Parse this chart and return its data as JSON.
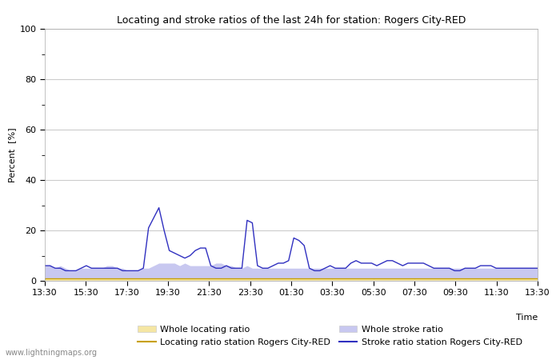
{
  "title": "Locating and stroke ratios of the last 24h for station: Rogers City-RED",
  "xlabel": "Time",
  "ylabel": "Percent  [%]",
  "ylim": [
    0,
    100
  ],
  "yticks": [
    0,
    20,
    40,
    60,
    80,
    100
  ],
  "yticks_minor": [
    10,
    30,
    50,
    70,
    90
  ],
  "x_tick_labels": [
    "13:30",
    "15:30",
    "17:30",
    "19:30",
    "21:30",
    "23:30",
    "01:30",
    "03:30",
    "05:30",
    "07:30",
    "09:30",
    "11:30",
    "13:30"
  ],
  "background_color": "#ffffff",
  "plot_bg_color": "#ffffff",
  "grid_color": "#cccccc",
  "watermark": "www.lightningmaps.org",
  "whole_locating_color": "#f5e6a3",
  "whole_stroke_color": "#c8c8f0",
  "locating_line_color": "#c8a000",
  "stroke_line_color": "#3030c0",
  "whole_locating_values": [
    1,
    1,
    1,
    1,
    1,
    1,
    1,
    1,
    1,
    1,
    1,
    1,
    1,
    1,
    1,
    1,
    1,
    1,
    1,
    1,
    1,
    1,
    1,
    1,
    1,
    1,
    1,
    1,
    1,
    1,
    1,
    1,
    1,
    1,
    1,
    1,
    1,
    1,
    1,
    1,
    1,
    1,
    1,
    1,
    1,
    1,
    1,
    1,
    1,
    1,
    1,
    1,
    1,
    1,
    1,
    1,
    1,
    1,
    1,
    1,
    1,
    1,
    1,
    1,
    1,
    1,
    1,
    1,
    1,
    1,
    1,
    1,
    1,
    1,
    1,
    1,
    1,
    1,
    1,
    1,
    1,
    1,
    1,
    1,
    1,
    1,
    1,
    1,
    1,
    1,
    1,
    1,
    1,
    1,
    1,
    1
  ],
  "whole_stroke_values": [
    6,
    6,
    5,
    6,
    5,
    4,
    4,
    5,
    5,
    5,
    5,
    5,
    6,
    6,
    5,
    5,
    4,
    4,
    4,
    5,
    5,
    6,
    7,
    7,
    7,
    7,
    6,
    7,
    6,
    6,
    6,
    6,
    6,
    7,
    7,
    6,
    6,
    5,
    5,
    6,
    5,
    5,
    5,
    5,
    5,
    5,
    5,
    5,
    5,
    5,
    5,
    5,
    5,
    5,
    5,
    5,
    5,
    5,
    5,
    5,
    5,
    5,
    5,
    5,
    5,
    5,
    5,
    5,
    5,
    5,
    5,
    5,
    5,
    5,
    5,
    5,
    5,
    5,
    5,
    5,
    5,
    5,
    5,
    5,
    5,
    5,
    5,
    5,
    5,
    5,
    5,
    5,
    5,
    5,
    5,
    5
  ],
  "locating_line_values": [
    1,
    1,
    1,
    1,
    1,
    1,
    1,
    1,
    1,
    1,
    1,
    1,
    1,
    1,
    1,
    1,
    1,
    1,
    1,
    1,
    1,
    1,
    1,
    1,
    1,
    1,
    1,
    1,
    1,
    1,
    1,
    1,
    1,
    1,
    1,
    1,
    1,
    1,
    1,
    1,
    1,
    1,
    1,
    1,
    1,
    1,
    1,
    1,
    1,
    1,
    1,
    1,
    1,
    1,
    1,
    1,
    1,
    1,
    1,
    1,
    1,
    1,
    1,
    1,
    1,
    1,
    1,
    1,
    1,
    1,
    1,
    1,
    1,
    1,
    1,
    1,
    1,
    1,
    1,
    1,
    1,
    1,
    1,
    1,
    1,
    1,
    1,
    1,
    1,
    1,
    1,
    1,
    1,
    1,
    1,
    1
  ],
  "stroke_line_values": [
    6,
    6,
    5,
    5,
    4,
    4,
    4,
    5,
    6,
    5,
    5,
    5,
    5,
    5,
    5,
    4,
    4,
    4,
    4,
    5,
    21,
    25,
    29,
    20,
    12,
    11,
    10,
    9,
    10,
    12,
    13,
    13,
    6,
    5,
    5,
    6,
    5,
    5,
    5,
    24,
    23,
    6,
    5,
    5,
    6,
    7,
    7,
    8,
    17,
    16,
    14,
    5,
    4,
    4,
    5,
    6,
    5,
    5,
    5,
    7,
    8,
    7,
    7,
    7,
    6,
    7,
    8,
    8,
    7,
    6,
    7,
    7,
    7,
    7,
    6,
    5,
    5,
    5,
    5,
    4,
    4,
    5,
    5,
    5,
    6,
    6,
    6,
    5,
    5,
    5,
    5,
    5,
    5,
    5,
    5,
    5
  ],
  "n_points": 96
}
